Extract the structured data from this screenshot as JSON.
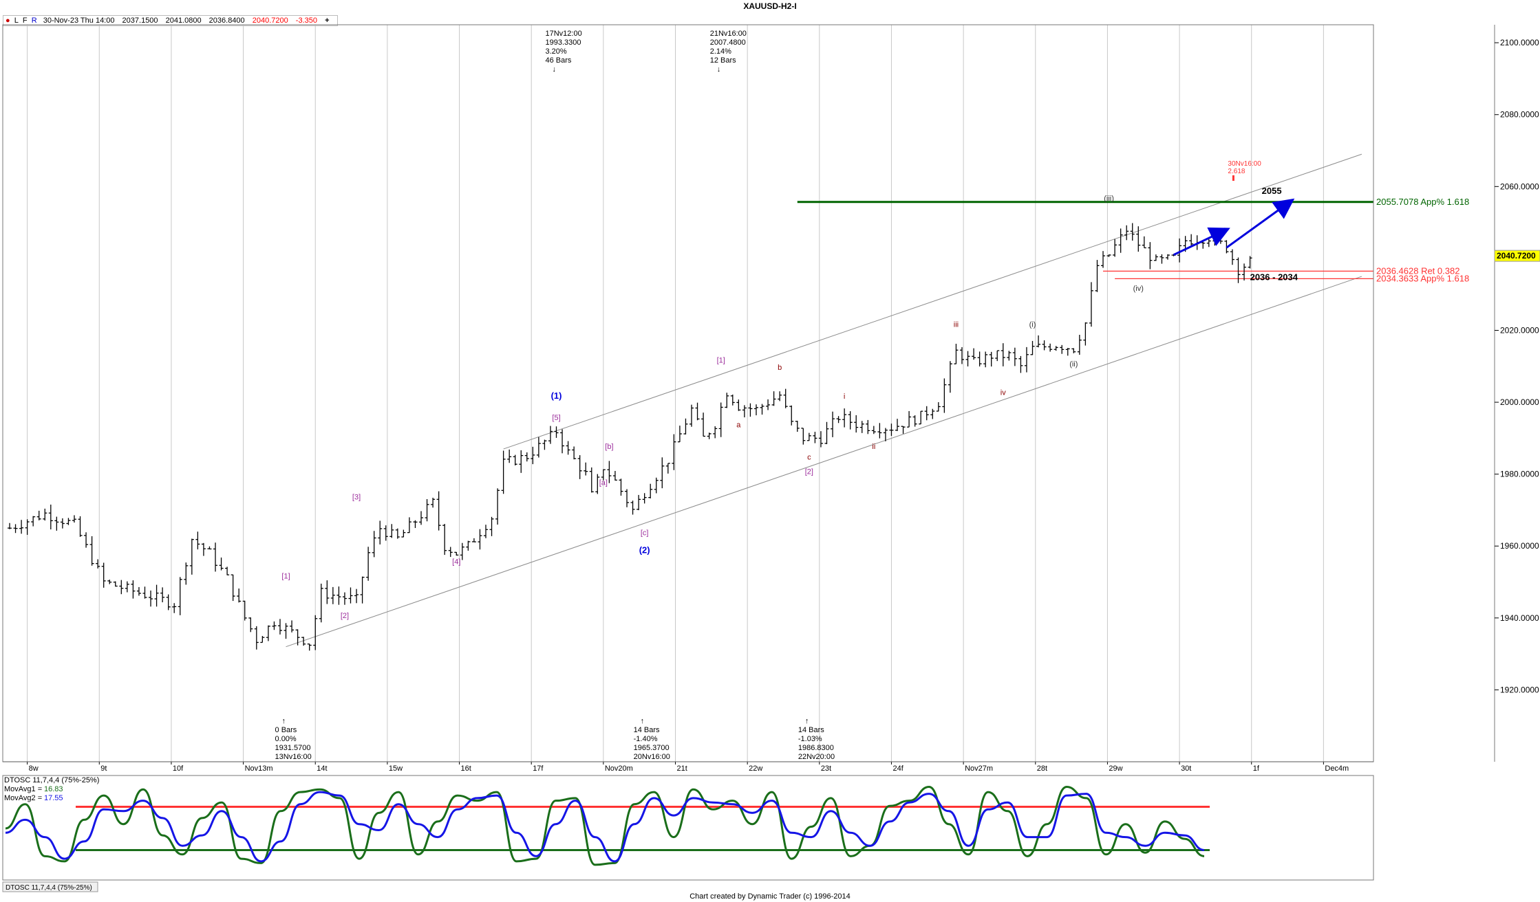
{
  "window": {
    "title": "XAUUSD-H2-I",
    "footer": "Chart created by Dynamic Trader  (c) 1996-2014"
  },
  "quote_bar": {
    "markers": [
      "●",
      "L",
      "F",
      "R"
    ],
    "date": "30-Nov-23 Thu 14:00",
    "open": "2037.1500",
    "high": "2041.0800",
    "low": "2036.8400",
    "close": "2040.7200",
    "change": "-3.350",
    "add": "+"
  },
  "colors": {
    "price_bar": "#000000",
    "grid": "#c8c8c8",
    "channel": "#8c8c8c",
    "green_level": "#006400",
    "red_level": "#ff3333",
    "wave_purple": "#9b2c9b",
    "wave_blue": "#0000dd",
    "wave_darkred": "#8b0000",
    "price_tag_bg": "#ffff00",
    "osc_green": "#1a6e1a",
    "osc_blue": "#1515e6"
  },
  "chart_data": [
    {
      "type": "line",
      "subtype": "ohlc-bar",
      "title": "XAUUSD-H2-I",
      "ylim": [
        1900,
        2105
      ],
      "x_tick_labels": [
        "8w",
        "9t",
        "10f",
        "Nov13m",
        "14t",
        "15w",
        "16t",
        "17f",
        "Nov20m",
        "21t",
        "22w",
        "23t",
        "24f",
        "Nov27m",
        "28t",
        "29w",
        "30t",
        "1f",
        "Dec4m"
      ],
      "y_tick_labels": [
        "2100.0000",
        "2080.0000",
        "2060.0000",
        "2040.0000",
        "2020.0000",
        "2000.0000",
        "1980.0000",
        "1960.0000",
        "1940.0000",
        "1920.0000"
      ],
      "y_ticks": [
        2100,
        2080,
        2060,
        2040,
        2020,
        2000,
        1980,
        1960,
        1940,
        1920
      ],
      "last_price": "2040.7200",
      "price_path": [
        [
          0,
          1965
        ],
        [
          6,
          1969
        ],
        [
          11,
          1966
        ],
        [
          16,
          1950
        ],
        [
          20,
          1948
        ],
        [
          24,
          1946
        ],
        [
          28,
          1944
        ],
        [
          31,
          1962
        ],
        [
          34,
          1958
        ],
        [
          37,
          1951
        ],
        [
          40,
          1940
        ],
        [
          42,
          1934
        ],
        [
          45,
          1939
        ],
        [
          48,
          1936
        ],
        [
          51,
          1933
        ],
        [
          53,
          1947
        ],
        [
          56,
          1946
        ],
        [
          59,
          1945
        ],
        [
          61,
          1958
        ],
        [
          63,
          1965
        ],
        [
          66,
          1962
        ],
        [
          69,
          1967
        ],
        [
          72,
          1972
        ],
        [
          74,
          1960
        ],
        [
          76,
          1958
        ],
        [
          78,
          1960
        ],
        [
          82,
          1968
        ],
        [
          84,
          1983
        ],
        [
          88,
          1985
        ],
        [
          91,
          1989
        ],
        [
          93,
          1992
        ],
        [
          95,
          1986
        ],
        [
          98,
          1980
        ],
        [
          99,
          1974
        ],
        [
          101,
          1982
        ],
        [
          103,
          1978
        ],
        [
          106,
          1970
        ],
        [
          108,
          1975
        ],
        [
          112,
          1984
        ],
        [
          116,
          1998
        ],
        [
          118,
          1990
        ],
        [
          120,
          1994
        ],
        [
          122,
          2003
        ],
        [
          124,
          1999
        ],
        [
          127,
          1998
        ],
        [
          131,
          2002
        ],
        [
          133,
          1994
        ],
        [
          135,
          1990
        ],
        [
          138,
          1990
        ],
        [
          141,
          1996
        ],
        [
          144,
          1994
        ],
        [
          147,
          1993
        ],
        [
          150,
          1993
        ],
        [
          155,
          1996
        ],
        [
          158,
          2000
        ],
        [
          161,
          2014
        ],
        [
          164,
          2011
        ],
        [
          167,
          2013
        ],
        [
          170,
          2013
        ],
        [
          172,
          2010
        ],
        [
          174,
          2015
        ],
        [
          178,
          2016
        ],
        [
          181,
          2015
        ],
        [
          183,
          2022
        ],
        [
          185,
          2038
        ],
        [
          187,
          2041
        ],
        [
          190,
          2048
        ],
        [
          192,
          2044
        ],
        [
          195,
          2039
        ],
        [
          198,
          2040
        ],
        [
          200,
          2045
        ],
        [
          204,
          2046
        ],
        [
          207,
          2043
        ],
        [
          209,
          2037
        ],
        [
          211,
          2039
        ]
      ],
      "channel": {
        "upper": [
          [
            84,
            1987
          ],
          [
            230,
            2069
          ]
        ],
        "lower": [
          [
            47,
            1932
          ],
          [
            230,
            2035
          ]
        ]
      },
      "levels": [
        {
          "value": 2055.7078,
          "label": "2055.7078 App% 1.618",
          "color": "green_level",
          "x_from": 134
        },
        {
          "value": 2036.4628,
          "label": "2036.4628 Ret 0.382",
          "color": "red_level",
          "x_from": 186
        },
        {
          "value": 2034.3633,
          "label": "2034.3633 App% 1.618",
          "color": "red_level",
          "x_from": 188
        }
      ],
      "zone_labels": [
        {
          "text": "2055",
          "x": 213,
          "y": 2058
        },
        {
          "text": "2036 - 2034",
          "x": 211,
          "y": 2034
        }
      ],
      "arrows": [
        {
          "from": [
            198,
            2041
          ],
          "to": [
            207,
            2048
          ]
        },
        {
          "from": [
            207,
            2043
          ],
          "to": [
            218,
            2056
          ]
        }
      ],
      "wave_labels": [
        {
          "text": "[1]",
          "x": 47,
          "y": 1951,
          "color": "wave_purple"
        },
        {
          "text": "[2]",
          "x": 57,
          "y": 1940,
          "color": "wave_purple"
        },
        {
          "text": "[3]",
          "x": 59,
          "y": 1973,
          "color": "wave_purple"
        },
        {
          "text": "[4]",
          "x": 76,
          "y": 1955,
          "color": "wave_purple"
        },
        {
          "text": "[5]",
          "x": 93,
          "y": 1995,
          "color": "wave_purple"
        },
        {
          "text": "(1)",
          "x": 93,
          "y": 2001,
          "color": "wave_blue"
        },
        {
          "text": "[a]",
          "x": 101,
          "y": 1977,
          "color": "wave_purple"
        },
        {
          "text": "[b]",
          "x": 102,
          "y": 1987,
          "color": "wave_purple"
        },
        {
          "text": "[c]",
          "x": 108,
          "y": 1963,
          "color": "wave_purple"
        },
        {
          "text": "(2)",
          "x": 108,
          "y": 1958,
          "color": "wave_blue"
        },
        {
          "text": "[1]",
          "x": 121,
          "y": 2011,
          "color": "wave_purple"
        },
        {
          "text": "a",
          "x": 124,
          "y": 1993,
          "color": "wave_darkred"
        },
        {
          "text": "b",
          "x": 131,
          "y": 2009,
          "color": "wave_darkred"
        },
        {
          "text": "c",
          "x": 136,
          "y": 1984,
          "color": "wave_darkred"
        },
        {
          "text": "[2]",
          "x": 136,
          "y": 1980,
          "color": "wave_purple"
        },
        {
          "text": "i",
          "x": 142,
          "y": 2001,
          "color": "wave_darkred"
        },
        {
          "text": "ii",
          "x": 147,
          "y": 1987,
          "color": "wave_darkred"
        },
        {
          "text": "iii",
          "x": 161,
          "y": 2021,
          "color": "wave_darkred"
        },
        {
          "text": "iv",
          "x": 169,
          "y": 2002,
          "color": "wave_darkred"
        },
        {
          "text": "(i)",
          "x": 174,
          "y": 2021,
          "color": "wave_black"
        },
        {
          "text": "(ii)",
          "x": 181,
          "y": 2010,
          "color": "wave_black"
        },
        {
          "text": "(iii)",
          "x": 187,
          "y": 2056,
          "color": "wave_black"
        },
        {
          "text": "(iv)",
          "x": 192,
          "y": 2031,
          "color": "wave_black"
        }
      ],
      "annotations_top": [
        {
          "lines": [
            "17Nv12:00",
            "1993.3300",
            "3.20%",
            "46 Bars"
          ],
          "x": 93
        },
        {
          "lines": [
            "21Nv16:00",
            "2007.4800",
            "2.14%",
            "12 Bars"
          ],
          "x": 121
        }
      ],
      "annotations_bottom": [
        {
          "lines": [
            "0 Bars",
            "0.00%",
            "1931.5700",
            "13Nv16:00"
          ],
          "x": 47
        },
        {
          "lines": [
            "14 Bars",
            "-1.40%",
            "1965.3700",
            "20Nv16:00"
          ],
          "x": 108
        },
        {
          "lines": [
            "14 Bars",
            "-1.03%",
            "1986.8300",
            "22Nv20:00"
          ],
          "x": 136
        }
      ],
      "projection": {
        "lines": [
          "30Nv16:00",
          "2.618"
        ],
        "x": 207
      }
    },
    {
      "type": "line",
      "title": "DTOSC 11,7,4,4 (75%-25%)",
      "ylim": [
        0,
        100
      ],
      "legend": [
        {
          "name": "DTOSC 11,7,4,4 (75%-25%)",
          "color": "#000000"
        },
        {
          "name": "MovAvg1",
          "value": "16.83",
          "color": "osc_green"
        },
        {
          "name": "MovAvg2",
          "value": "17.55",
          "color": "osc_blue"
        }
      ],
      "levels": [
        75,
        25
      ],
      "tab_label": "DTOSC 11,7,4,4 (75%-25%)",
      "series": [
        {
          "name": "MovAvg1",
          "color": "osc_green",
          "values": [
            50,
            78,
            18,
            12,
            60,
            88,
            55,
            95,
            42,
            20,
            62,
            80,
            15,
            10,
            70,
            92,
            95,
            85,
            15,
            68,
            92,
            20,
            58,
            88,
            82,
            92,
            12,
            15,
            82,
            85,
            8,
            10,
            78,
            92,
            40,
            95,
            72,
            82,
            55,
            92,
            15,
            52,
            85,
            18,
            30,
            76,
            82,
            98,
            55,
            20,
            92,
            70,
            18,
            55,
            98,
            85,
            20,
            55,
            22,
            58,
            38,
            18
          ]
        },
        {
          "name": "MovAvg2",
          "color": "osc_blue",
          "values": [
            45,
            60,
            40,
            15,
            35,
            72,
            70,
            82,
            62,
            30,
            42,
            70,
            40,
            12,
            35,
            78,
            92,
            88,
            55,
            48,
            78,
            55,
            40,
            72,
            85,
            88,
            45,
            18,
            55,
            82,
            40,
            12,
            55,
            85,
            65,
            85,
            80,
            78,
            68,
            82,
            45,
            40,
            70,
            45,
            30,
            58,
            80,
            90,
            70,
            30,
            72,
            80,
            40,
            40,
            88,
            90,
            45,
            40,
            30,
            45,
            42,
            25
          ]
        }
      ]
    }
  ]
}
